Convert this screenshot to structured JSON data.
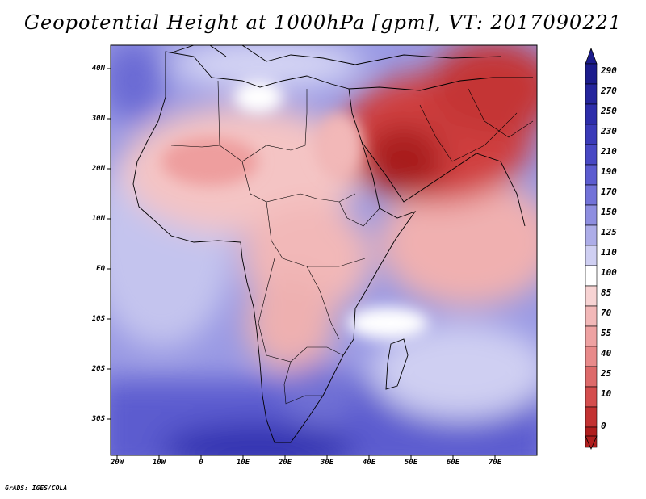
{
  "title": "Geopotential Height at 1000hPa [gpm], VT: 2017090221",
  "credit": "GrADS: IGES/COLA",
  "y_axis_labels": [
    "40N",
    "30N",
    "20N",
    "10N",
    "EQ",
    "10S",
    "20S",
    "30S"
  ],
  "x_axis_labels": [
    "20W",
    "10W",
    "0",
    "10E",
    "20E",
    "30E",
    "40E",
    "50E",
    "60E",
    "70E"
  ],
  "colorbar": {
    "labels": [
      "290",
      "270",
      "250",
      "230",
      "210",
      "190",
      "170",
      "150",
      "125",
      "110",
      "100",
      "85",
      "70",
      "55",
      "40",
      "25",
      "10",
      "0"
    ],
    "colors": [
      "#1c1c8c",
      "#25259c",
      "#2d2daa",
      "#3a3ab8",
      "#4848c4",
      "#5c5cd0",
      "#7272d8",
      "#8e8ee0",
      "#adade8",
      "#cfcff2",
      "#ffffff",
      "#f7d3d3",
      "#f2b8b8",
      "#eea2a2",
      "#e88a8a",
      "#dd6a6a",
      "#d44e4e",
      "#c33232",
      "#b01e1e"
    ]
  }
}
